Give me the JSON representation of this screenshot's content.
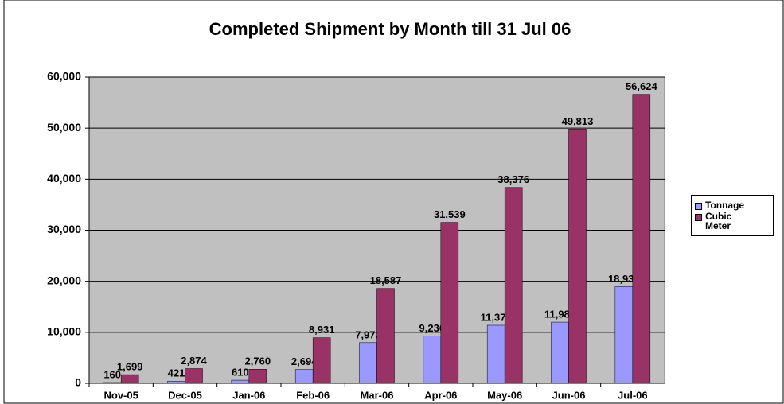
{
  "chart_data": {
    "type": "bar",
    "title": "Completed Shipment by Month till 31 Jul 06",
    "categories": [
      "Nov-05",
      "Dec-05",
      "Jan-06",
      "Feb-06",
      "Mar-06",
      "Apr-06",
      "May-06",
      "Jun-06",
      "Jul-06"
    ],
    "series": [
      {
        "name": "Tonnage",
        "color": "#9999ff",
        "values": [
          160,
          421,
          610,
          2694,
          7973,
          9236,
          11379,
          11989,
          18938
        ],
        "value_labels": [
          "160",
          "421",
          "610",
          "2,694",
          "7,973",
          "9,236",
          "11,379",
          "11,989",
          "18,938"
        ]
      },
      {
        "name": "Cubic Meter",
        "color": "#993366",
        "values": [
          1699,
          2874,
          2760,
          8931,
          18587,
          31539,
          38376,
          49813,
          56624
        ],
        "value_labels": [
          "1,699",
          "2,874",
          "2,760",
          "8,931",
          "18,587",
          "31,539",
          "38,376",
          "49,813",
          "56,624"
        ]
      }
    ],
    "ylim": [
      0,
      60000
    ],
    "yticks": [
      0,
      {
        "value": 10000,
        "label": "10,000"
      },
      {
        "value": 20000,
        "label": "20,000"
      },
      {
        "value": 30000,
        "label": "30,000"
      },
      {
        "value": 40000,
        "label": "40,000"
      },
      {
        "value": 50000,
        "label": "50,000"
      },
      {
        "value": 60000,
        "label": "60,000"
      }
    ],
    "grid": true,
    "legend": "right",
    "plot_background": "#c0c0c0"
  }
}
